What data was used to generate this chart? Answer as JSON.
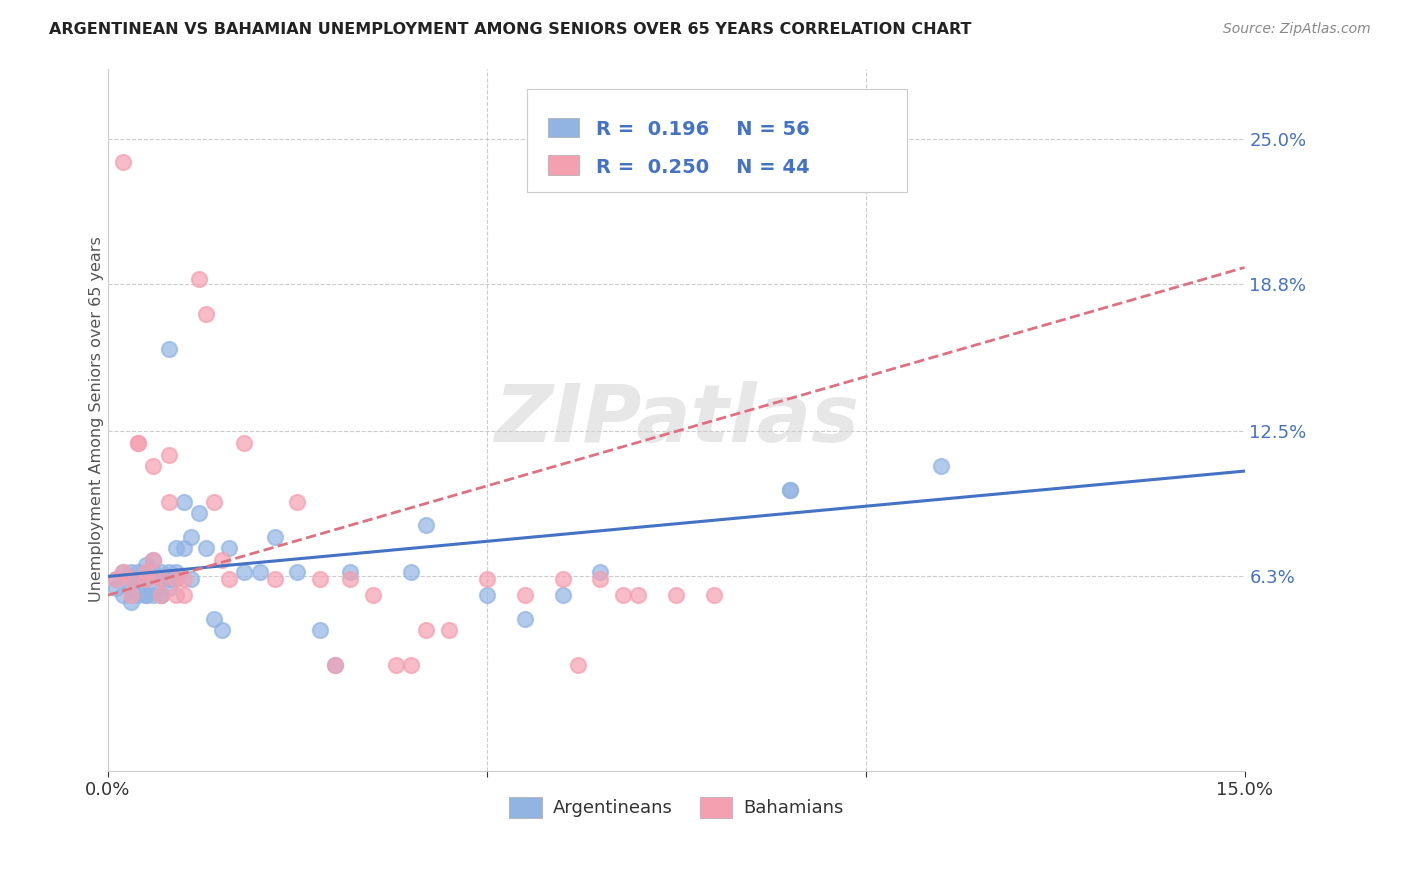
{
  "title": "ARGENTINEAN VS BAHAMIAN UNEMPLOYMENT AMONG SENIORS OVER 65 YEARS CORRELATION CHART",
  "source": "Source: ZipAtlas.com",
  "ylabel": "Unemployment Among Seniors over 65 years",
  "xlim": [
    0.0,
    0.15
  ],
  "ylim": [
    -0.02,
    0.28
  ],
  "yticks": [
    0.063,
    0.125,
    0.188,
    0.25
  ],
  "ytick_labels": [
    "6.3%",
    "12.5%",
    "18.8%",
    "25.0%"
  ],
  "xticks": [
    0.0,
    0.05,
    0.1,
    0.15
  ],
  "xtick_labels": [
    "0.0%",
    "",
    "",
    "15.0%"
  ],
  "watermark": "ZIPatlas",
  "r_argentinean": "0.196",
  "n_argentinean": "56",
  "r_bahamian": "0.250",
  "n_bahamian": "44",
  "color_argentinean": "#92b4e3",
  "color_bahamian": "#f4a0b0",
  "trendline_argentinean_color": "#4472c4",
  "trendline_bahamian_color": "#e07080",
  "argentinean_x": [
    0.001,
    0.001,
    0.002,
    0.002,
    0.003,
    0.003,
    0.003,
    0.003,
    0.004,
    0.004,
    0.004,
    0.005,
    0.005,
    0.005,
    0.005,
    0.005,
    0.006,
    0.006,
    0.006,
    0.006,
    0.007,
    0.007,
    0.007,
    0.007,
    0.008,
    0.008,
    0.008,
    0.008,
    0.009,
    0.009,
    0.009,
    0.01,
    0.01,
    0.011,
    0.011,
    0.012,
    0.013,
    0.014,
    0.015,
    0.016,
    0.018,
    0.02,
    0.022,
    0.025,
    0.028,
    0.03,
    0.032,
    0.04,
    0.042,
    0.05,
    0.055,
    0.06,
    0.065,
    0.09,
    0.09,
    0.11
  ],
  "argentinean_y": [
    0.062,
    0.058,
    0.065,
    0.055,
    0.065,
    0.062,
    0.058,
    0.052,
    0.065,
    0.06,
    0.055,
    0.065,
    0.068,
    0.055,
    0.062,
    0.055,
    0.07,
    0.065,
    0.058,
    0.055,
    0.065,
    0.055,
    0.062,
    0.055,
    0.16,
    0.065,
    0.062,
    0.058,
    0.065,
    0.075,
    0.062,
    0.095,
    0.075,
    0.08,
    0.062,
    0.09,
    0.075,
    0.045,
    0.04,
    0.075,
    0.065,
    0.065,
    0.08,
    0.065,
    0.04,
    0.025,
    0.065,
    0.065,
    0.085,
    0.055,
    0.045,
    0.055,
    0.065,
    0.1,
    0.1,
    0.11
  ],
  "bahamian_x": [
    0.001,
    0.002,
    0.002,
    0.003,
    0.003,
    0.004,
    0.004,
    0.005,
    0.005,
    0.006,
    0.006,
    0.007,
    0.007,
    0.008,
    0.008,
    0.009,
    0.009,
    0.01,
    0.01,
    0.012,
    0.013,
    0.014,
    0.015,
    0.016,
    0.018,
    0.022,
    0.025,
    0.028,
    0.03,
    0.032,
    0.035,
    0.038,
    0.04,
    0.042,
    0.045,
    0.05,
    0.055,
    0.06,
    0.062,
    0.065,
    0.068,
    0.07,
    0.075,
    0.08
  ],
  "bahamian_y": [
    0.062,
    0.24,
    0.065,
    0.062,
    0.055,
    0.12,
    0.12,
    0.062,
    0.065,
    0.11,
    0.07,
    0.062,
    0.055,
    0.115,
    0.095,
    0.062,
    0.055,
    0.062,
    0.055,
    0.19,
    0.175,
    0.095,
    0.07,
    0.062,
    0.12,
    0.062,
    0.095,
    0.062,
    0.025,
    0.062,
    0.055,
    0.025,
    0.025,
    0.04,
    0.04,
    0.062,
    0.055,
    0.062,
    0.025,
    0.062,
    0.055,
    0.055,
    0.055,
    0.055
  ]
}
